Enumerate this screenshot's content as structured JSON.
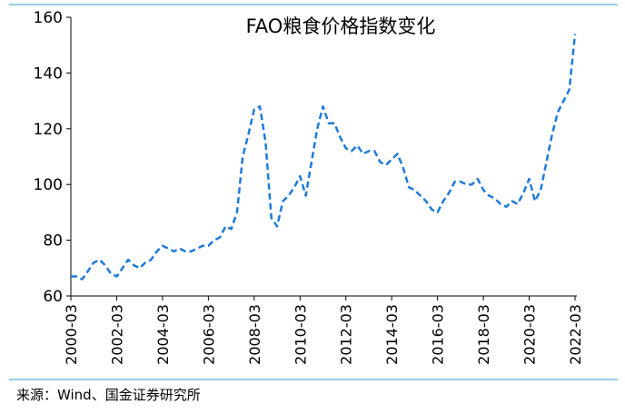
{
  "source_note": "来源：Wind、国金证券研究所",
  "colors": {
    "line": "#1f7ad8",
    "frame": "#3399cc",
    "axis": "#000000",
    "text": "#000000"
  },
  "chart_data": {
    "type": "line",
    "title": "FAO粮食价格指数变化",
    "xlabel": "",
    "ylabel": "",
    "ylim": [
      60,
      160
    ],
    "yticks": [
      60,
      80,
      100,
      120,
      140,
      160
    ],
    "xlim": [
      "2000-03",
      "2022-03"
    ],
    "xtick_labels": [
      "2000-03",
      "2002-03",
      "2004-03",
      "2006-03",
      "2008-03",
      "2010-03",
      "2012-03",
      "2014-03",
      "2016-03",
      "2018-03",
      "2020-03",
      "2022-03"
    ],
    "grid": false,
    "line_style": "dashed",
    "series": [
      {
        "x": [
          "2000-03",
          "2000-06",
          "2000-09",
          "2000-12",
          "2001-03",
          "2001-06",
          "2001-09",
          "2001-12",
          "2002-03",
          "2002-06",
          "2002-09",
          "2002-12",
          "2003-03",
          "2003-06",
          "2003-09",
          "2003-12",
          "2004-03",
          "2004-06",
          "2004-09",
          "2004-12",
          "2005-03",
          "2005-06",
          "2005-09",
          "2005-12",
          "2006-03",
          "2006-06",
          "2006-09",
          "2006-12",
          "2007-03",
          "2007-06",
          "2007-09",
          "2007-12",
          "2008-03",
          "2008-06",
          "2008-09",
          "2008-12",
          "2009-03",
          "2009-06",
          "2009-09",
          "2009-12",
          "2010-03",
          "2010-06",
          "2010-09",
          "2010-12",
          "2011-03",
          "2011-06",
          "2011-09",
          "2011-12",
          "2012-03",
          "2012-06",
          "2012-09",
          "2012-12",
          "2013-03",
          "2013-06",
          "2013-09",
          "2013-12",
          "2014-03",
          "2014-06",
          "2014-09",
          "2014-12",
          "2015-03",
          "2015-06",
          "2015-09",
          "2015-12",
          "2016-03",
          "2016-06",
          "2016-09",
          "2016-12",
          "2017-03",
          "2017-06",
          "2017-09",
          "2017-12",
          "2018-03",
          "2018-06",
          "2018-09",
          "2018-12",
          "2019-03",
          "2019-06",
          "2019-09",
          "2019-12",
          "2020-03",
          "2020-06",
          "2020-09",
          "2020-12",
          "2021-03",
          "2021-06",
          "2021-09",
          "2021-12",
          "2022-03"
        ],
        "values": [
          67,
          67,
          66,
          69,
          72,
          73,
          71,
          68,
          67,
          70,
          73,
          71,
          70,
          72,
          73,
          76,
          78,
          77,
          76,
          77,
          76,
          76,
          77,
          78,
          78,
          80,
          81,
          85,
          84,
          90,
          110,
          118,
          127,
          128,
          115,
          88,
          85,
          94,
          96,
          99,
          103,
          96,
          108,
          120,
          128,
          122,
          122,
          117,
          113,
          112,
          114,
          111,
          112,
          112,
          108,
          107,
          109,
          111,
          106,
          99,
          98,
          96,
          94,
          91,
          90,
          94,
          97,
          101,
          101,
          100,
          100,
          102,
          98,
          96,
          95,
          93,
          92,
          94,
          93,
          97,
          102,
          94,
          98,
          108,
          118,
          126,
          130,
          134,
          154
        ]
      }
    ]
  }
}
